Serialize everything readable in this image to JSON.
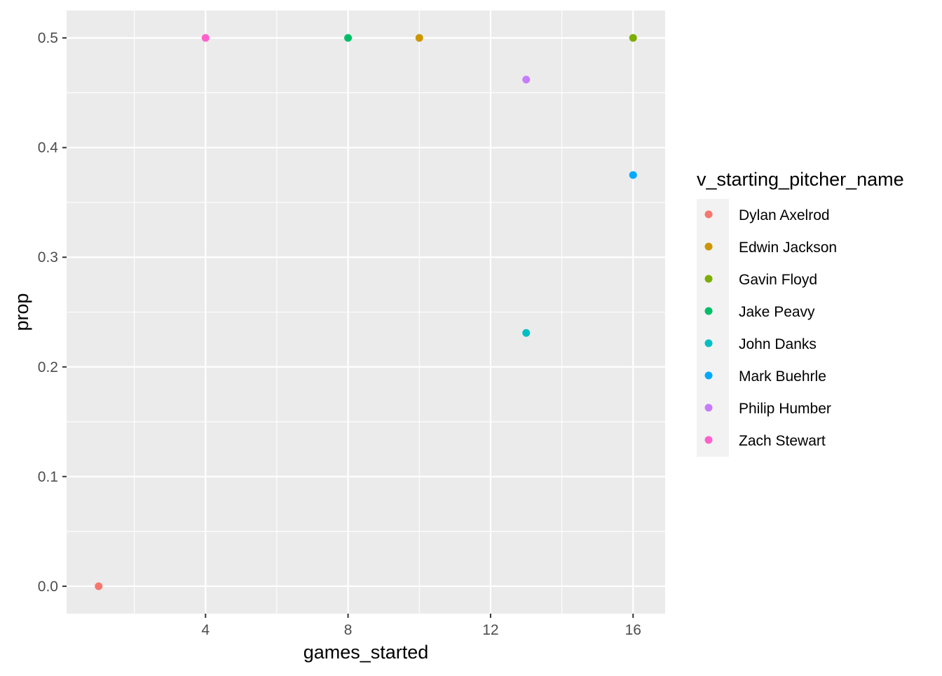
{
  "chart_data": {
    "type": "scatter",
    "xlabel": "games_started",
    "ylabel": "prop",
    "xlim": [
      0.1,
      16.9
    ],
    "ylim": [
      -0.025,
      0.525
    ],
    "x_ticks": [
      4,
      8,
      12,
      16
    ],
    "x_tick_labels": [
      "4",
      "8",
      "12",
      "16"
    ],
    "x_minor_ticks": [
      2,
      6,
      10,
      14
    ],
    "y_ticks": [
      0.0,
      0.1,
      0.2,
      0.3,
      0.4,
      0.5
    ],
    "y_tick_labels": [
      "0.0",
      "0.1",
      "0.2",
      "0.3",
      "0.4",
      "0.5"
    ],
    "y_minor_ticks": [
      0.05,
      0.15,
      0.25,
      0.35,
      0.45
    ],
    "grid": true,
    "legend": {
      "title": "v_starting_pitcher_name",
      "placement": "right"
    },
    "series": [
      {
        "name": "Dylan Axelrod",
        "color": "#F8766D",
        "x": [
          1
        ],
        "y": [
          0.0
        ]
      },
      {
        "name": "Edwin Jackson",
        "color": "#CD9600",
        "x": [
          10
        ],
        "y": [
          0.5
        ]
      },
      {
        "name": "Gavin Floyd",
        "color": "#7CAE00",
        "x": [
          16
        ],
        "y": [
          0.5
        ]
      },
      {
        "name": "Jake Peavy",
        "color": "#00BE67",
        "x": [
          8
        ],
        "y": [
          0.5
        ]
      },
      {
        "name": "John Danks",
        "color": "#00BFC4",
        "x": [
          13
        ],
        "y": [
          0.231
        ]
      },
      {
        "name": "Mark Buehrle",
        "color": "#00A9FF",
        "x": [
          16
        ],
        "y": [
          0.375
        ]
      },
      {
        "name": "Philip Humber",
        "color": "#C77CFF",
        "x": [
          13
        ],
        "y": [
          0.462
        ]
      },
      {
        "name": "Zach Stewart",
        "color": "#FF61CC",
        "x": [
          4
        ],
        "y": [
          0.5
        ]
      }
    ]
  },
  "colors": {
    "panel_background": "#EBEBEB",
    "grid_major": "#FFFFFF",
    "legend_key_background": "#F2F2F2"
  }
}
